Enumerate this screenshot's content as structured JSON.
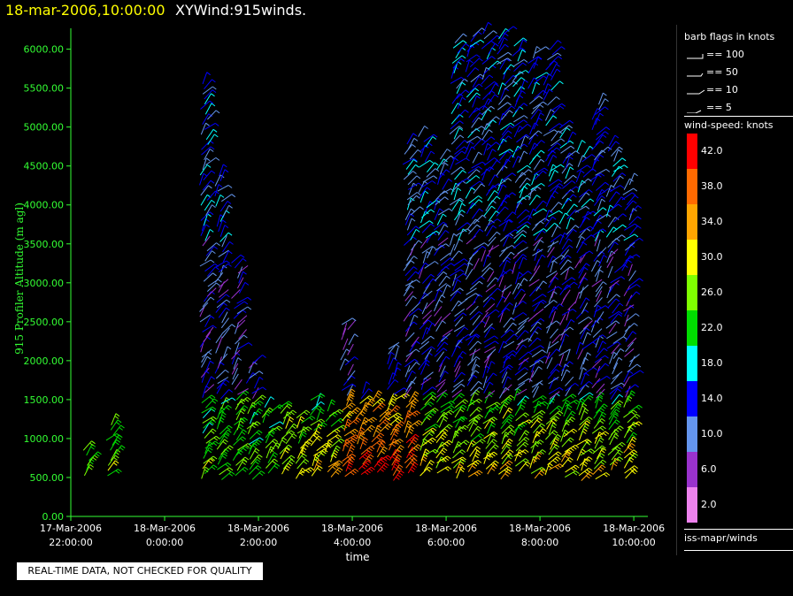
{
  "header": {
    "datetime": "18-mar-2006,10:00:00",
    "product": "XYWind:915winds."
  },
  "qc_note": "REAL-TIME DATA, NOT CHECKED FOR QUALITY",
  "legend": {
    "barb_title": "barb flags in knots",
    "barb_items": [
      "== 100",
      "== 50",
      "== 10",
      "== 5"
    ],
    "speed_title": "wind-speed: knots",
    "speed_items": [
      {
        "label": "42.0",
        "color": "#ff0000"
      },
      {
        "label": "38.0",
        "color": "#ff6a00"
      },
      {
        "label": "34.0",
        "color": "#ffa500"
      },
      {
        "label": "30.0",
        "color": "#ffff00"
      },
      {
        "label": "26.0",
        "color": "#7fff00"
      },
      {
        "label": "22.0",
        "color": "#00dd00"
      },
      {
        "label": "18.0",
        "color": "#00ffff"
      },
      {
        "label": "14.0",
        "color": "#0000ff"
      },
      {
        "label": "10.0",
        "color": "#6495ed"
      },
      {
        "label": "6.0",
        "color": "#9932cc"
      },
      {
        "label": "2.0",
        "color": "#ee82ee"
      }
    ],
    "source": "iss-mapr/winds"
  },
  "chart_data": {
    "type": "scatter",
    "title": "18-mar-2006,10:00:00  XYWind:915winds.",
    "xlabel": "time",
    "ylabel": "915 Profiler Altitude (m agl)",
    "ylim": [
      0,
      6200
    ],
    "yticks": [
      "0.00",
      "500.00",
      "1000.00",
      "1500.00",
      "2000.00",
      "2500.00",
      "3000.00",
      "3500.00",
      "4000.00",
      "4500.00",
      "5000.00",
      "5500.00",
      "6000.00"
    ],
    "xlim_hours": [
      0,
      12.3
    ],
    "xticks": [
      {
        "date": "17-Mar-2006",
        "time": "22:00:00"
      },
      {
        "date": "18-Mar-2006",
        "time": "0:00:00"
      },
      {
        "date": "18-Mar-2006",
        "time": "2:00:00"
      },
      {
        "date": "18-Mar-2006",
        "time": "4:00:00"
      },
      {
        "date": "18-Mar-2006",
        "time": "6:00:00"
      },
      {
        "date": "18-Mar-2006",
        "time": "8:00:00"
      },
      {
        "date": "18-Mar-2006",
        "time": "10:00:00"
      }
    ],
    "profiles": [
      {
        "t": "22:20",
        "top": 900
      },
      {
        "t": "22:50",
        "top": 1200
      },
      {
        "t": "0:50",
        "top": 5600
      },
      {
        "t": "1:10",
        "top": 4400
      },
      {
        "t": "1:30",
        "top": 3300
      },
      {
        "t": "1:50",
        "top": 2000
      },
      {
        "t": "2:10",
        "top": 1400
      },
      {
        "t": "2:30",
        "top": 1400
      },
      {
        "t": "2:50",
        "top": 1300
      },
      {
        "t": "3:10",
        "top": 1500
      },
      {
        "t": "3:30",
        "top": 1400
      },
      {
        "t": "3:50",
        "top": 2500
      },
      {
        "t": "4:10",
        "top": 1600
      },
      {
        "t": "4:30",
        "top": 1500
      },
      {
        "t": "4:50",
        "top": 2200
      },
      {
        "t": "5:10",
        "top": 4800
      },
      {
        "t": "5:30",
        "top": 4900
      },
      {
        "t": "5:50",
        "top": 4600
      },
      {
        "t": "6:10",
        "top": 6100
      },
      {
        "t": "6:30",
        "top": 6200
      },
      {
        "t": "6:50",
        "top": 6200
      },
      {
        "t": "7:10",
        "top": 6200
      },
      {
        "t": "7:30",
        "top": 6100
      },
      {
        "t": "7:50",
        "top": 6000
      },
      {
        "t": "8:10",
        "top": 6000
      },
      {
        "t": "8:30",
        "top": 5000
      },
      {
        "t": "8:50",
        "top": 4700
      },
      {
        "t": "9:10",
        "top": 5300
      },
      {
        "t": "9:30",
        "top": 4800
      },
      {
        "t": "9:50",
        "top": 4300
      }
    ]
  }
}
